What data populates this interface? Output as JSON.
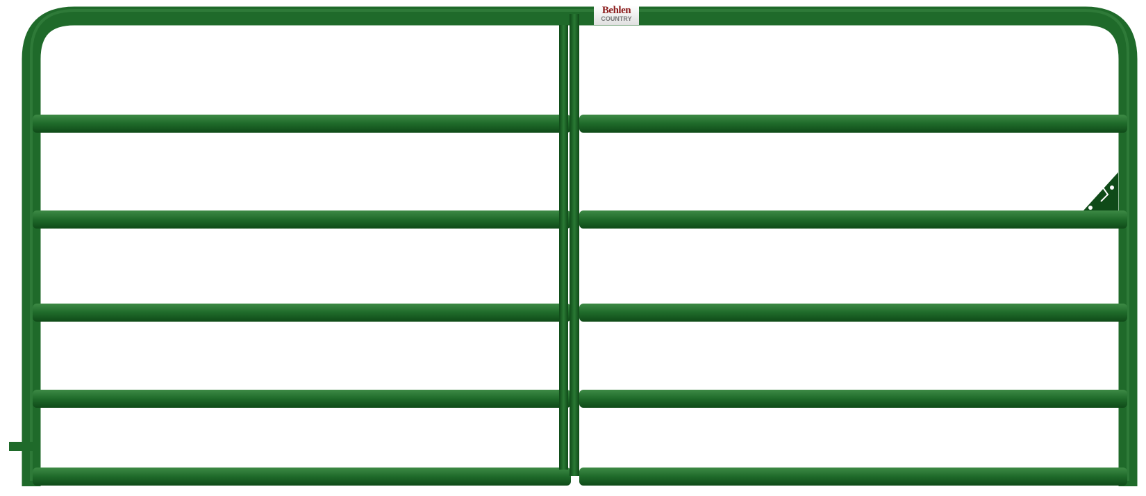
{
  "product": {
    "brand_name": "Behlen",
    "brand_line": "COUNTRY",
    "gate_color": "#1f6a2a",
    "gate_dark": "#0f4a18",
    "gate_light": "#3d8a45",
    "rail_count": 6
  }
}
